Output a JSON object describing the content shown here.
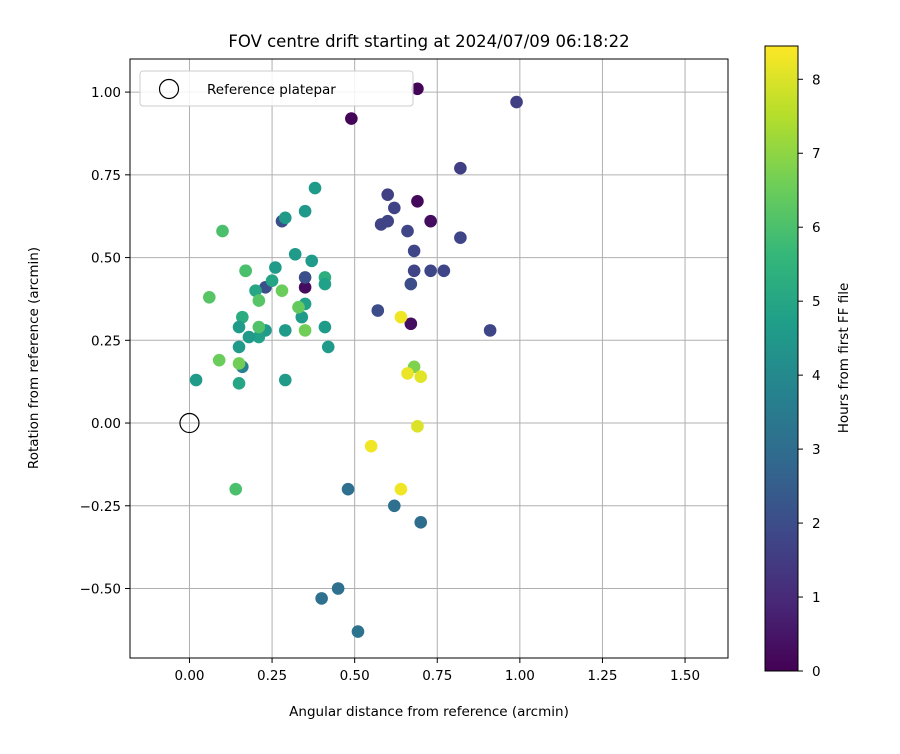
{
  "chart_data": {
    "type": "scatter",
    "title": "FOV centre drift starting at 2024/07/09 06:18:22",
    "xlabel": "Angular distance from reference (arcmin)",
    "ylabel": "Rotation from reference (arcmin)",
    "xlim": [
      -0.18,
      1.63
    ],
    "ylim": [
      -0.71,
      1.1
    ],
    "xticks": [
      0.0,
      0.25,
      0.5,
      0.75,
      1.0,
      1.25,
      1.5
    ],
    "xtick_labels": [
      "0.00",
      "0.25",
      "0.50",
      "0.75",
      "1.00",
      "1.25",
      "1.50"
    ],
    "yticks": [
      -0.5,
      -0.25,
      0.0,
      0.25,
      0.5,
      0.75,
      1.0
    ],
    "ytick_labels": [
      "−0.50",
      "−0.25",
      "0.00",
      "0.25",
      "0.50",
      "0.75",
      "1.00"
    ],
    "grid": true,
    "legend": {
      "placement": "upper left",
      "entries": [
        {
          "label": "Reference platepar",
          "marker": "open-circle",
          "x": 0.0,
          "y": 0.0
        }
      ]
    },
    "colorbar": {
      "label": "Hours from first FF file",
      "min": 0,
      "max": 8.45,
      "ticks": [
        0,
        1,
        2,
        3,
        4,
        5,
        6,
        7,
        8
      ],
      "tick_labels": [
        "0",
        "1",
        "2",
        "3",
        "4",
        "5",
        "6",
        "7",
        "8"
      ],
      "colormap": "viridis",
      "stops": [
        "#440154",
        "#482878",
        "#3e4989",
        "#31688e",
        "#26828e",
        "#1f9e89",
        "#35b779",
        "#6ece58",
        "#b5de2b",
        "#fde725"
      ]
    },
    "points": [
      {
        "x": 0.69,
        "y": 1.01,
        "t": 0.1
      },
      {
        "x": 0.49,
        "y": 0.92,
        "t": 0.1
      },
      {
        "x": 0.69,
        "y": 0.67,
        "t": 0.2
      },
      {
        "x": 0.73,
        "y": 0.61,
        "t": 0.3
      },
      {
        "x": 0.67,
        "y": 0.3,
        "t": 0.3
      },
      {
        "x": 0.35,
        "y": 0.41,
        "t": 0.3
      },
      {
        "x": 0.99,
        "y": 0.97,
        "t": 1.6
      },
      {
        "x": 0.82,
        "y": 0.77,
        "t": 1.6
      },
      {
        "x": 0.6,
        "y": 0.69,
        "t": 1.6
      },
      {
        "x": 0.62,
        "y": 0.65,
        "t": 1.7
      },
      {
        "x": 0.58,
        "y": 0.6,
        "t": 1.7
      },
      {
        "x": 0.6,
        "y": 0.61,
        "t": 1.7
      },
      {
        "x": 0.66,
        "y": 0.58,
        "t": 1.8
      },
      {
        "x": 0.82,
        "y": 0.56,
        "t": 1.8
      },
      {
        "x": 0.68,
        "y": 0.52,
        "t": 1.8
      },
      {
        "x": 0.68,
        "y": 0.46,
        "t": 1.7
      },
      {
        "x": 0.73,
        "y": 0.46,
        "t": 1.8
      },
      {
        "x": 0.77,
        "y": 0.46,
        "t": 1.8
      },
      {
        "x": 0.67,
        "y": 0.42,
        "t": 2.0
      },
      {
        "x": 0.57,
        "y": 0.34,
        "t": 2.0
      },
      {
        "x": 0.91,
        "y": 0.28,
        "t": 1.8
      },
      {
        "x": 0.28,
        "y": 0.61,
        "t": 2.1
      },
      {
        "x": 0.23,
        "y": 0.41,
        "t": 2.1
      },
      {
        "x": 0.35,
        "y": 0.44,
        "t": 2.1
      },
      {
        "x": 0.48,
        "y": -0.2,
        "t": 3.1
      },
      {
        "x": 0.62,
        "y": -0.25,
        "t": 3.1
      },
      {
        "x": 0.7,
        "y": -0.3,
        "t": 3.0
      },
      {
        "x": 0.45,
        "y": -0.5,
        "t": 3.1
      },
      {
        "x": 0.4,
        "y": -0.53,
        "t": 3.1
      },
      {
        "x": 0.51,
        "y": -0.63,
        "t": 3.2
      },
      {
        "x": 0.16,
        "y": 0.17,
        "t": 3.7
      },
      {
        "x": 0.29,
        "y": 0.62,
        "t": 4.6
      },
      {
        "x": 0.38,
        "y": 0.71,
        "t": 4.6
      },
      {
        "x": 0.35,
        "y": 0.64,
        "t": 4.5
      },
      {
        "x": 0.32,
        "y": 0.51,
        "t": 4.6
      },
      {
        "x": 0.37,
        "y": 0.49,
        "t": 4.6
      },
      {
        "x": 0.26,
        "y": 0.47,
        "t": 4.6
      },
      {
        "x": 0.17,
        "y": 0.46,
        "t": 5.2
      },
      {
        "x": 0.25,
        "y": 0.43,
        "t": 4.9
      },
      {
        "x": 0.41,
        "y": 0.44,
        "t": 5.3
      },
      {
        "x": 0.41,
        "y": 0.42,
        "t": 4.8
      },
      {
        "x": 0.2,
        "y": 0.4,
        "t": 5.0
      },
      {
        "x": 0.35,
        "y": 0.36,
        "t": 4.8
      },
      {
        "x": 0.34,
        "y": 0.32,
        "t": 4.6
      },
      {
        "x": 0.41,
        "y": 0.29,
        "t": 4.6
      },
      {
        "x": 0.16,
        "y": 0.32,
        "t": 5.2
      },
      {
        "x": 0.15,
        "y": 0.29,
        "t": 4.6
      },
      {
        "x": 0.23,
        "y": 0.28,
        "t": 4.6
      },
      {
        "x": 0.29,
        "y": 0.28,
        "t": 4.6
      },
      {
        "x": 0.21,
        "y": 0.26,
        "t": 4.8
      },
      {
        "x": 0.18,
        "y": 0.26,
        "t": 4.6
      },
      {
        "x": 0.15,
        "y": 0.23,
        "t": 4.6
      },
      {
        "x": 0.42,
        "y": 0.23,
        "t": 4.6
      },
      {
        "x": 0.02,
        "y": 0.13,
        "t": 4.6
      },
      {
        "x": 0.29,
        "y": 0.13,
        "t": 4.6
      },
      {
        "x": 0.15,
        "y": 0.12,
        "t": 5.0
      },
      {
        "x": 0.1,
        "y": 0.58,
        "t": 6.0
      },
      {
        "x": 0.17,
        "y": 0.46,
        "t": 6.0
      },
      {
        "x": 0.06,
        "y": 0.38,
        "t": 6.2
      },
      {
        "x": 0.21,
        "y": 0.37,
        "t": 6.2
      },
      {
        "x": 0.28,
        "y": 0.4,
        "t": 6.5
      },
      {
        "x": 0.33,
        "y": 0.35,
        "t": 6.4
      },
      {
        "x": 0.35,
        "y": 0.28,
        "t": 6.6
      },
      {
        "x": 0.21,
        "y": 0.29,
        "t": 6.1
      },
      {
        "x": 0.09,
        "y": 0.19,
        "t": 6.5
      },
      {
        "x": 0.15,
        "y": 0.18,
        "t": 6.6
      },
      {
        "x": 0.14,
        "y": -0.2,
        "t": 6.0
      },
      {
        "x": 0.68,
        "y": 0.17,
        "t": 6.8
      },
      {
        "x": 0.64,
        "y": 0.32,
        "t": 8.3
      },
      {
        "x": 0.66,
        "y": 0.15,
        "t": 8.2
      },
      {
        "x": 0.7,
        "y": 0.14,
        "t": 8.1
      },
      {
        "x": 0.69,
        "y": -0.01,
        "t": 8.0
      },
      {
        "x": 0.55,
        "y": -0.07,
        "t": 8.3
      },
      {
        "x": 0.64,
        "y": -0.2,
        "t": 8.3
      }
    ]
  }
}
